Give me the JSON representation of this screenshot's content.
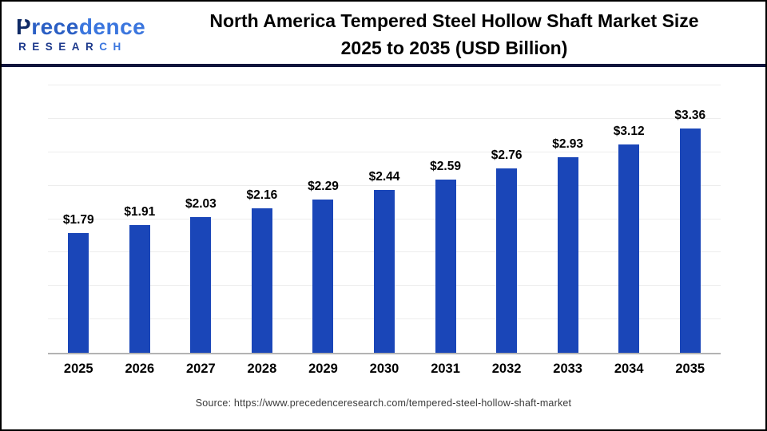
{
  "logo": {
    "word_p": "P",
    "word_mid": "rece",
    "word_end": "dence",
    "sub_dark": "RESEAR",
    "sub_light": "CH"
  },
  "header": {
    "title_line1": "North America Tempered Steel Hollow Shaft Market Size",
    "title_line2": "2025 to 2035 (USD Billion)"
  },
  "chart_data": {
    "type": "bar",
    "title": "North America Tempered Steel Hollow Shaft Market Size 2025 to 2035 (USD Billion)",
    "categories": [
      "2025",
      "2026",
      "2027",
      "2028",
      "2029",
      "2030",
      "2031",
      "2032",
      "2033",
      "2034",
      "2035"
    ],
    "values": [
      1.79,
      1.91,
      2.03,
      2.16,
      2.29,
      2.44,
      2.59,
      2.76,
      2.93,
      3.12,
      3.36
    ],
    "value_labels": [
      "$1.79",
      "$1.91",
      "$2.03",
      "$2.16",
      "$2.29",
      "$2.44",
      "$2.59",
      "$2.76",
      "$2.93",
      "$3.12",
      "$3.36"
    ],
    "xlabel": "",
    "ylabel": "",
    "ylim": [
      0,
      4.0
    ],
    "grid_step": 0.5,
    "grid": true,
    "legend": false,
    "bar_color": "#1A46B8",
    "axis_color": "#b3b3b3",
    "gridline_color": "#ededed"
  },
  "footer": {
    "source_text": "Source: https://www.precedenceresearch.com/tempered-steel-hollow-shaft-market"
  }
}
